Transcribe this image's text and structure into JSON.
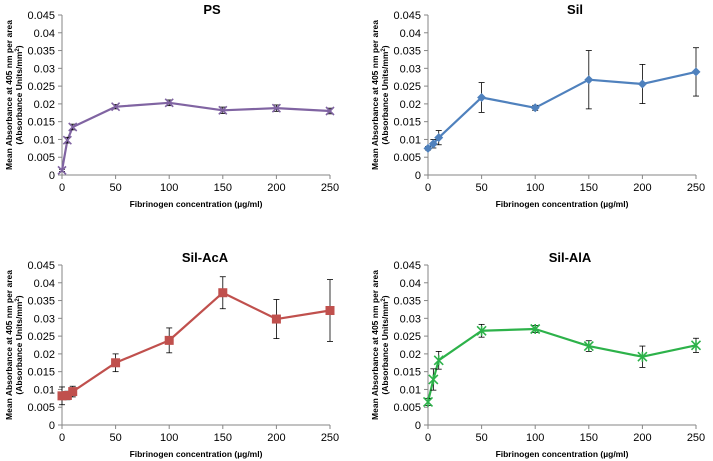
{
  "chart_data": [
    {
      "type": "line",
      "title": "PS",
      "xlabel": "Fibrinogen concentration (µg/ml)",
      "ylabel_line1": "Mean Absorbance at 405 nm per area",
      "ylabel_line2_main": "(Absorbance Units/mm",
      "ylabel_line2_sup": "2",
      "ylabel_line2_end": ")",
      "x": [
        0,
        5,
        10,
        50,
        100,
        150,
        200,
        250
      ],
      "series": [
        {
          "name": "PS",
          "marker": "x",
          "color": "#8064a2",
          "values": [
            0.0013,
            0.0098,
            0.0135,
            0.0192,
            0.0203,
            0.0182,
            0.0188,
            0.018
          ],
          "errors": [
            0.0003,
            0.0008,
            0.0008,
            0.0006,
            0.0008,
            0.0009,
            0.0009,
            0.0008
          ]
        }
      ],
      "ylim": [
        0,
        0.045
      ],
      "yticks": [
        0,
        0.005,
        0.01,
        0.015,
        0.02,
        0.025,
        0.03,
        0.035,
        0.04,
        0.045
      ],
      "ytick_labels": [
        "0",
        "0.005",
        "0.01",
        "0.015",
        "0.02",
        "0.025",
        "0.03",
        "0.035",
        "0.04",
        "0.045"
      ],
      "xticks": [
        0,
        50,
        100,
        150,
        200,
        250
      ],
      "xtick_labels": [
        "0",
        "50",
        "100",
        "150",
        "200",
        "250"
      ],
      "xlim": [
        0,
        250
      ],
      "grid": false
    },
    {
      "type": "line",
      "title": "Sil",
      "xlabel": "Fibrinogen concentration (µg/ml)",
      "ylabel_line1": "Mean Absorbance at 405 nm per area",
      "ylabel_line2_main": "(Absorbance Units/mm",
      "ylabel_line2_sup": "2",
      "ylabel_line2_end": ")",
      "x": [
        0,
        5,
        10,
        50,
        100,
        150,
        200,
        250
      ],
      "series": [
        {
          "name": "Sil",
          "marker": "diamond",
          "color": "#4f81bd",
          "values": [
            0.0075,
            0.0088,
            0.0105,
            0.0218,
            0.0189,
            0.0268,
            0.0256,
            0.029
          ],
          "errors": [
            0.0005,
            0.0012,
            0.002,
            0.0042,
            0.0007,
            0.0082,
            0.0055,
            0.0068
          ]
        }
      ],
      "ylim": [
        0,
        0.045
      ],
      "yticks": [
        0,
        0.005,
        0.01,
        0.015,
        0.02,
        0.025,
        0.03,
        0.035,
        0.04,
        0.045
      ],
      "ytick_labels": [
        "0",
        "0.005",
        "0.01",
        "0.015",
        "0.02",
        "0.025",
        "0.03",
        "0.035",
        "0.04",
        "0.045"
      ],
      "xticks": [
        0,
        50,
        100,
        150,
        200,
        250
      ],
      "xtick_labels": [
        "0",
        "50",
        "100",
        "150",
        "200",
        "250"
      ],
      "xlim": [
        0,
        250
      ],
      "grid": false
    },
    {
      "type": "line",
      "title": "Sil-AcA",
      "xlabel": "Fibrinogen concentration (µg/ml)",
      "ylabel_line1": "Mean Absorbance at 405 nm per area",
      "ylabel_line2_main": "(Absorbance Units/mm",
      "ylabel_line2_sup": "2",
      "ylabel_line2_end": ")",
      "x": [
        0,
        5,
        10,
        50,
        100,
        150,
        200,
        250
      ],
      "series": [
        {
          "name": "Sil-AcA",
          "marker": "square",
          "color": "#c0504d",
          "values": [
            0.0082,
            0.0083,
            0.0094,
            0.0175,
            0.0238,
            0.0372,
            0.0298,
            0.0322
          ],
          "errors": [
            0.0025,
            0.0012,
            0.0015,
            0.0025,
            0.0035,
            0.0045,
            0.0055,
            0.0087
          ]
        }
      ],
      "ylim": [
        0,
        0.045
      ],
      "yticks": [
        0,
        0.005,
        0.01,
        0.015,
        0.02,
        0.025,
        0.03,
        0.035,
        0.04,
        0.045
      ],
      "ytick_labels": [
        "0",
        "0.005",
        "0.01",
        "0.015",
        "0.02",
        "0.025",
        "0.03",
        "0.035",
        "0.04",
        "0.045"
      ],
      "xticks": [
        0,
        50,
        100,
        150,
        200,
        250
      ],
      "xtick_labels": [
        "0",
        "50",
        "100",
        "150",
        "200",
        "250"
      ],
      "xlim": [
        0,
        250
      ],
      "grid": false
    },
    {
      "type": "line",
      "title": "Sil-AlA",
      "xlabel": "Fibrinogen concentration (µg/ml)",
      "ylabel_line1": "Mean Absorbance at 405 nm per area",
      "ylabel_line2_main": "(Absorbance Units/mm",
      "ylabel_line2_sup": "2",
      "ylabel_line2_end": ")",
      "x": [
        0,
        5,
        10,
        50,
        100,
        150,
        200,
        250
      ],
      "series": [
        {
          "name": "Sil-AlA",
          "marker": "star",
          "color": "#2db24a",
          "values": [
            0.0065,
            0.0128,
            0.0182,
            0.0265,
            0.027,
            0.0222,
            0.0192,
            0.0224
          ],
          "errors": [
            0.001,
            0.003,
            0.0025,
            0.0018,
            0.001,
            0.0015,
            0.003,
            0.002
          ]
        }
      ],
      "ylim": [
        0,
        0.045
      ],
      "yticks": [
        0,
        0.005,
        0.01,
        0.015,
        0.02,
        0.025,
        0.03,
        0.035,
        0.04,
        0.045
      ],
      "ytick_labels": [
        "0",
        "0.005",
        "0.01",
        "0.015",
        "0.02",
        "0.025",
        "0.03",
        "0.035",
        "0.04",
        "0.045"
      ],
      "xticks": [
        0,
        50,
        100,
        150,
        200,
        250
      ],
      "xtick_labels": [
        "0",
        "50",
        "100",
        "150",
        "200",
        "250"
      ],
      "xlim": [
        0,
        250
      ],
      "grid": false
    }
  ]
}
